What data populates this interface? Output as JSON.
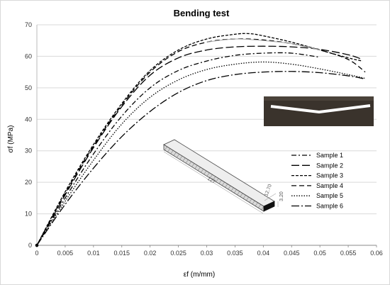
{
  "chart_data": {
    "type": "line",
    "title": "Bending test",
    "xlabel": "εf (m/mm)",
    "ylabel": "σf (MPa)",
    "xlim": [
      0,
      0.06
    ],
    "ylim": [
      0,
      70
    ],
    "x_ticks": [
      "0",
      "0.005",
      "0.01",
      "0.015",
      "0.02",
      "0.025",
      "0.03",
      "0.035",
      "0.04",
      "0.045",
      "0.05",
      "0.055",
      "0.06"
    ],
    "y_ticks": [
      "0",
      "10",
      "20",
      "30",
      "40",
      "50",
      "60",
      "70"
    ],
    "grid": "horizontal",
    "legend_position": "right",
    "series": [
      {
        "name": "Sample 1",
        "dash": "dashdot",
        "color": "#000000",
        "x": [
          0,
          0.005,
          0.01,
          0.015,
          0.02,
          0.025,
          0.03,
          0.035,
          0.04,
          0.045,
          0.05
        ],
        "y": [
          0,
          15,
          29,
          41,
          50,
          55.5,
          58.5,
          60.3,
          61,
          61,
          59.7
        ]
      },
      {
        "name": "Sample 2",
        "dash": "longdash",
        "color": "#000000",
        "x": [
          0,
          0.005,
          0.01,
          0.015,
          0.02,
          0.025,
          0.03,
          0.035,
          0.04,
          0.045,
          0.05,
          0.055,
          0.0575
        ],
        "y": [
          0,
          16,
          31,
          44,
          54,
          59.5,
          62,
          63,
          63.2,
          63,
          62.2,
          60.5,
          59
        ]
      },
      {
        "name": "Sample 3",
        "dash": "shortdash",
        "color": "#000000",
        "x": [
          0,
          0.005,
          0.01,
          0.015,
          0.02,
          0.025,
          0.03,
          0.035,
          0.0375,
          0.04,
          0.045,
          0.05,
          0.055,
          0.0575
        ],
        "y": [
          0,
          17,
          32,
          45,
          55.5,
          62,
          65.5,
          67,
          67.2,
          66.5,
          64.5,
          62,
          59.5,
          58.5
        ]
      },
      {
        "name": "Sample 4",
        "dash": "mediumdash",
        "color": "#000000",
        "x": [
          0,
          0.005,
          0.01,
          0.015,
          0.02,
          0.025,
          0.03,
          0.035,
          0.04,
          0.045,
          0.05,
          0.055,
          0.058
        ],
        "y": [
          0,
          16.5,
          31.5,
          44.5,
          55,
          61.5,
          64.5,
          65.5,
          65.2,
          64,
          62,
          59,
          55
        ]
      },
      {
        "name": "Sample 5",
        "dash": "dotted",
        "color": "#000000",
        "x": [
          0,
          0.005,
          0.01,
          0.015,
          0.02,
          0.025,
          0.03,
          0.035,
          0.04,
          0.045,
          0.05,
          0.055,
          0.058
        ],
        "y": [
          0,
          14,
          27,
          38.5,
          47,
          52.5,
          55.8,
          57.5,
          58.2,
          57.5,
          56,
          54.2,
          53
        ]
      },
      {
        "name": "Sample 6",
        "dash": "longdashdot",
        "color": "#000000",
        "x": [
          0,
          0.005,
          0.01,
          0.015,
          0.02,
          0.025,
          0.03,
          0.035,
          0.04,
          0.045,
          0.05,
          0.055,
          0.058
        ],
        "y": [
          0,
          13,
          24.5,
          34.5,
          42.5,
          48.5,
          52.3,
          54.2,
          55,
          55.2,
          54.8,
          53.8,
          52.8
        ]
      },
      {
        "name": "",
        "dash": "solid",
        "color": "#aaaaaa",
        "x": [
          0.03,
          0.035,
          0.04,
          0.045,
          0.05
        ],
        "y": [
          64.5,
          65.5,
          65,
          64,
          62
        ]
      }
    ],
    "annotations": {
      "specimen_length": "127",
      "specimen_width": "12.70",
      "specimen_thickness": "3.20"
    }
  }
}
